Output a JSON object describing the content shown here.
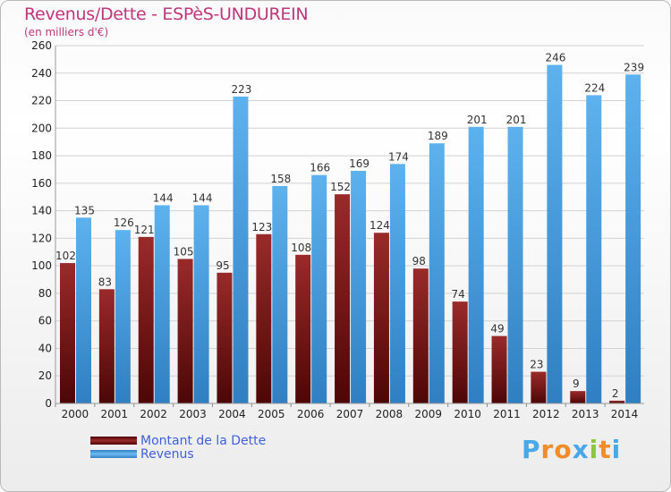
{
  "header": {
    "title": "Revenus/Dette - ESPèS-UNDUREIN",
    "subtitle": "(en milliers d'€)"
  },
  "legend": {
    "items": [
      {
        "label": "Montant de la Dette",
        "color": "#7a1a1a"
      },
      {
        "label": "Revenus",
        "color": "#4aa3e8"
      }
    ]
  },
  "brand": {
    "letters": [
      "P",
      "r",
      "o",
      "x",
      "i",
      "t",
      "i"
    ],
    "colors": [
      "#49a8e8",
      "#f08c2a",
      "#f08c2a",
      "#49a8e8",
      "#8cc63f",
      "#f08c2a",
      "#49a8e8"
    ]
  },
  "chart_data": {
    "type": "bar",
    "categories": [
      "2000",
      "2001",
      "2002",
      "2003",
      "2004",
      "2005",
      "2006",
      "2007",
      "2008",
      "2009",
      "2010",
      "2011",
      "2012",
      "2013",
      "2014"
    ],
    "series": [
      {
        "name": "Montant de la Dette",
        "values": [
          102,
          83,
          121,
          105,
          95,
          123,
          108,
          152,
          124,
          98,
          74,
          49,
          23,
          9,
          2
        ],
        "labels": [
          "102",
          "83",
          "121",
          "105",
          "95",
          "123",
          "108",
          "152",
          "124",
          "98",
          "74",
          "49",
          "23",
          "9",
          "2"
        ]
      },
      {
        "name": "Revenus",
        "values": [
          135,
          126,
          144,
          144,
          223,
          158,
          166,
          169,
          174,
          189,
          201,
          201,
          246,
          224,
          239
        ],
        "labels": [
          "135",
          "126",
          "144",
          "144",
          "223",
          "158",
          "166",
          "169",
          "174",
          "189",
          "201",
          "201",
          "246",
          "224",
          "239"
        ]
      }
    ],
    "ylim": [
      0,
      260
    ],
    "yticks": [
      0,
      20,
      40,
      60,
      80,
      100,
      120,
      140,
      160,
      180,
      200,
      220,
      240,
      260
    ],
    "grid": true
  }
}
